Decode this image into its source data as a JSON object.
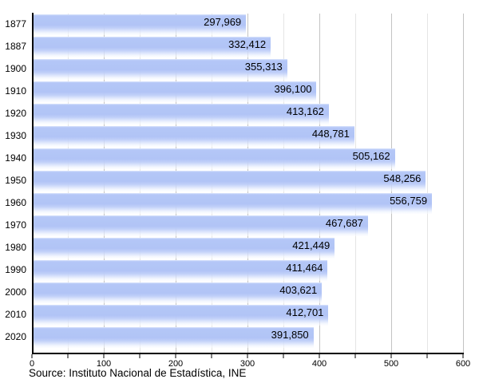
{
  "chart_data": {
    "type": "bar",
    "orientation": "horizontal",
    "title": "",
    "xlabel": "",
    "ylabel": "",
    "categories": [
      "1877",
      "1887",
      "1900",
      "1910",
      "1920",
      "1930",
      "1940",
      "1950",
      "1960",
      "1970",
      "1980",
      "1990",
      "2000",
      "2010",
      "2020"
    ],
    "values": [
      297969,
      332412,
      355313,
      396100,
      413162,
      448781,
      505162,
      548256,
      556759,
      467687,
      421449,
      411464,
      403621,
      412701,
      391850
    ],
    "value_labels": [
      "297,969",
      "332,412",
      "355,313",
      "396,100",
      "413,162",
      "448,781",
      "505,162",
      "548,256",
      "556,759",
      "467,687",
      "421,449",
      "411,464",
      "403,621",
      "412,701",
      "391,850"
    ],
    "x_axis": {
      "min": 0,
      "max": 600,
      "unit_scale": "thousands",
      "major_tick_step": 100,
      "minor_tick_step": 50,
      "tick_labels": [
        "0",
        "100",
        "200",
        "300",
        "400",
        "500",
        "600"
      ]
    },
    "grid": true,
    "legend": null,
    "source_note": "Source: Instituto Nacional de Estadística, INE",
    "colors": {
      "bar_fill": "#b1c4f6",
      "bar_highlight": "#eef3fe",
      "axis": "#000000",
      "major_gridline": "#c3c3c3",
      "minor_gridline": "#e5e5e5",
      "label_text": "#000000"
    }
  }
}
